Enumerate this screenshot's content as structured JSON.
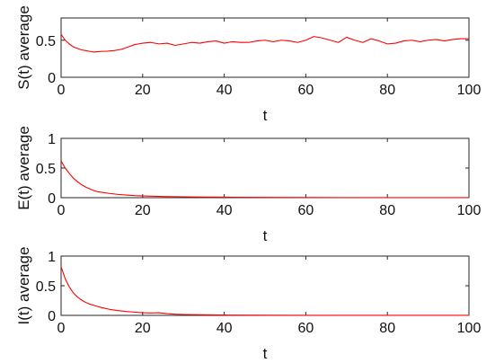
{
  "colors": {
    "series": "#ff0000",
    "axes": "#262626",
    "background": "#ffffff"
  },
  "chart_data": [
    {
      "type": "line",
      "title": "",
      "xlabel": "t",
      "ylabel": "S(t) average",
      "xlim": [
        0,
        100
      ],
      "ylim": [
        0,
        0.8
      ],
      "xticks": [
        "0",
        "20",
        "40",
        "60",
        "80",
        "100"
      ],
      "yticks": [
        "0",
        "0.5"
      ],
      "ytick_values": [
        0,
        0.5
      ],
      "grid": false,
      "legend": "none",
      "series": [
        {
          "color": "#ff0000",
          "x": [
            0,
            1,
            2,
            3,
            4,
            5,
            6,
            7,
            8,
            9,
            10,
            11,
            12,
            13,
            14,
            15,
            16,
            17,
            18,
            19,
            20,
            22,
            24,
            26,
            28,
            30,
            32,
            34,
            36,
            38,
            40,
            42,
            44,
            46,
            48,
            50,
            52,
            54,
            56,
            58,
            60,
            62,
            64,
            66,
            68,
            70,
            72,
            74,
            76,
            78,
            80,
            82,
            84,
            86,
            88,
            90,
            92,
            94,
            96,
            98,
            100
          ],
          "y": [
            0.58,
            0.5,
            0.45,
            0.41,
            0.39,
            0.37,
            0.36,
            0.35,
            0.34,
            0.345,
            0.35,
            0.35,
            0.355,
            0.36,
            0.37,
            0.38,
            0.4,
            0.42,
            0.44,
            0.45,
            0.46,
            0.47,
            0.45,
            0.46,
            0.43,
            0.45,
            0.47,
            0.46,
            0.48,
            0.49,
            0.46,
            0.48,
            0.47,
            0.47,
            0.49,
            0.5,
            0.48,
            0.5,
            0.49,
            0.47,
            0.5,
            0.55,
            0.53,
            0.5,
            0.47,
            0.54,
            0.5,
            0.47,
            0.52,
            0.49,
            0.45,
            0.46,
            0.49,
            0.5,
            0.48,
            0.5,
            0.51,
            0.49,
            0.51,
            0.52,
            0.52
          ]
        }
      ]
    },
    {
      "type": "line",
      "title": "",
      "xlabel": "t",
      "ylabel": "E(t) average",
      "xlim": [
        0,
        100
      ],
      "ylim": [
        0,
        1
      ],
      "xticks": [
        "0",
        "20",
        "40",
        "60",
        "80",
        "100"
      ],
      "yticks": [
        "0",
        "0.5",
        "1"
      ],
      "ytick_values": [
        0,
        0.5,
        1
      ],
      "grid": false,
      "legend": "none",
      "series": [
        {
          "color": "#ff0000",
          "x": [
            0,
            1,
            2,
            3,
            4,
            5,
            6,
            7,
            8,
            9,
            10,
            12,
            14,
            16,
            18,
            20,
            25,
            30,
            35,
            40,
            50,
            60,
            70,
            80,
            90,
            100
          ],
          "y": [
            0.62,
            0.5,
            0.41,
            0.33,
            0.27,
            0.22,
            0.18,
            0.15,
            0.12,
            0.1,
            0.09,
            0.07,
            0.055,
            0.045,
            0.035,
            0.03,
            0.02,
            0.015,
            0.01,
            0.008,
            0.005,
            0.003,
            0.002,
            0.001,
            0.001,
            0.001
          ]
        }
      ]
    },
    {
      "type": "line",
      "title": "",
      "xlabel": "t",
      "ylabel": "I(t) average",
      "xlim": [
        0,
        100
      ],
      "ylim": [
        0,
        1
      ],
      "xticks": [
        "0",
        "20",
        "40",
        "60",
        "80",
        "100"
      ],
      "yticks": [
        "0",
        "0.5",
        "1"
      ],
      "ytick_values": [
        0,
        0.5,
        1
      ],
      "grid": false,
      "legend": "none",
      "series": [
        {
          "color": "#ff0000",
          "x": [
            0,
            1,
            2,
            3,
            4,
            5,
            6,
            7,
            8,
            9,
            10,
            12,
            14,
            16,
            18,
            20,
            22,
            24,
            26,
            28,
            30,
            35,
            40,
            50,
            60,
            70,
            80,
            90,
            100
          ],
          "y": [
            0.82,
            0.62,
            0.48,
            0.38,
            0.31,
            0.26,
            0.22,
            0.19,
            0.17,
            0.15,
            0.13,
            0.1,
            0.08,
            0.065,
            0.055,
            0.045,
            0.04,
            0.045,
            0.03,
            0.02,
            0.015,
            0.01,
            0.006,
            0.003,
            0.002,
            0.001,
            0.001,
            0.001,
            0.001
          ]
        }
      ]
    }
  ]
}
